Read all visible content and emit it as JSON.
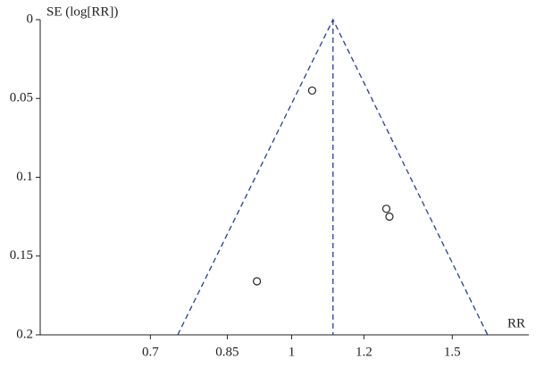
{
  "chart_data": {
    "type": "scatter",
    "y_label": "SE (log[RR])",
    "x_label": "RR",
    "x_log": true,
    "y_inverted": true,
    "xlim": [
      0.53,
      1.82
    ],
    "ylim": [
      0,
      0.2
    ],
    "xticks": [
      0.7,
      0.85,
      1,
      1.2,
      1.5
    ],
    "yticks": [
      0,
      0.05,
      0.1,
      0.15,
      0.2
    ],
    "series": [
      {
        "x": [
          1.053,
          1.27,
          1.28,
          0.916
        ],
        "values": [
          0.045,
          0.12,
          0.125,
          0.166
        ],
        "color": "#222222"
      }
    ],
    "funnel": {
      "x": [
        0.75,
        1.11,
        1.64
      ],
      "y": [
        0.2,
        0,
        0.2
      ],
      "color": "#2b3a9c"
    },
    "pooled_line": {
      "x": [
        1.11,
        1.11
      ],
      "y": [
        0,
        0.2
      ],
      "color": "#2b3a9c"
    }
  }
}
